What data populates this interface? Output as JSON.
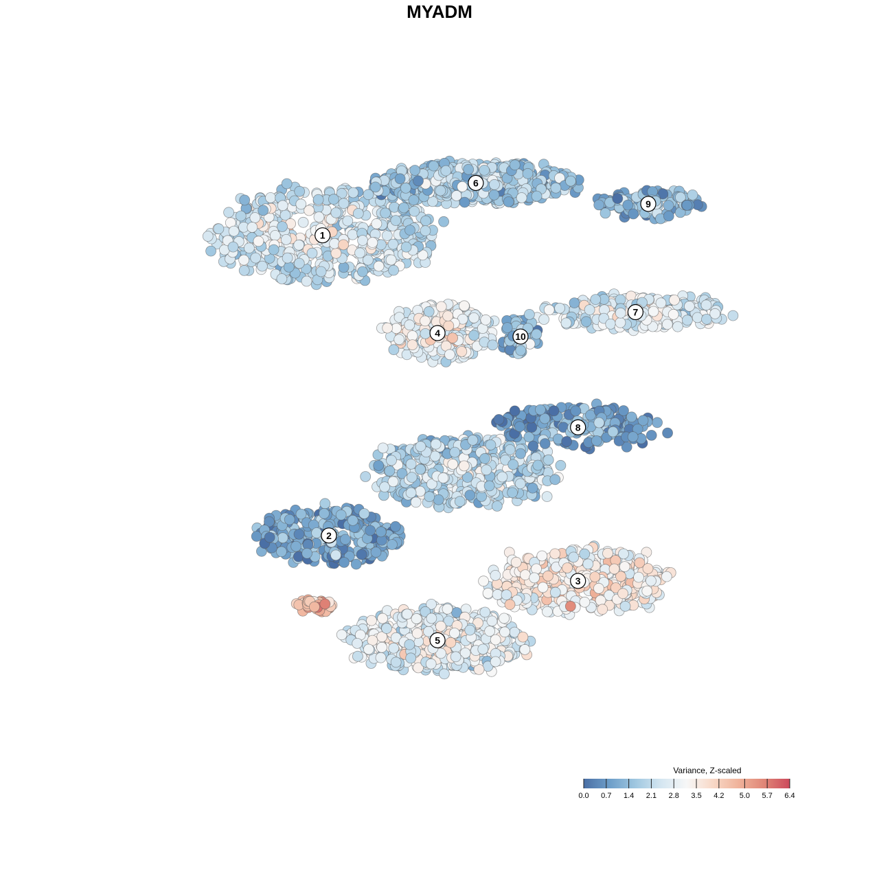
{
  "chart_data": {
    "type": "scatter",
    "title": "MYADM",
    "xlabel": "",
    "ylabel": "",
    "grid": false,
    "legend": {
      "title": "Variance, Z-scaled",
      "placement": "bottom-right",
      "ticks": [
        "0.0",
        "0.7",
        "1.4",
        "2.1",
        "2.8",
        "3.5",
        "4.2",
        "5.0",
        "5.7",
        "6.4"
      ],
      "range": [
        0.0,
        6.4
      ],
      "colors": [
        "#4a6fa5",
        "#6d9ec9",
        "#9fc7e0",
        "#d4e6f1",
        "#f7f7f7",
        "#f8d9c8",
        "#f0b39b",
        "#e08677",
        "#cc4a5c"
      ]
    },
    "clusters": [
      {
        "label": "1",
        "cx": 0.29,
        "cy": 0.73,
        "rx": 0.17,
        "ry": 0.13,
        "mean": 2.4,
        "hot": 4.1,
        "n": 520
      },
      {
        "label": "2",
        "cx": 0.3,
        "cy": -0.13,
        "rx": 0.11,
        "ry": 0.08,
        "mean": 1.1,
        "hot": 2.0,
        "n": 300
      },
      {
        "label": "3",
        "cx": 0.69,
        "cy": -0.26,
        "rx": 0.14,
        "ry": 0.09,
        "mean": 3.4,
        "hot": 4.8,
        "n": 420
      },
      {
        "label": "4",
        "cx": 0.47,
        "cy": 0.45,
        "rx": 0.08,
        "ry": 0.08,
        "mean": 3.1,
        "hot": 4.2,
        "n": 260
      },
      {
        "label": "5",
        "cx": 0.47,
        "cy": -0.43,
        "rx": 0.14,
        "ry": 0.09,
        "mean": 2.9,
        "hot": 3.8,
        "n": 480
      },
      {
        "label": "6",
        "cx": 0.53,
        "cy": 0.88,
        "rx": 0.16,
        "ry": 0.06,
        "mean": 1.9,
        "hot": 2.7,
        "n": 480
      },
      {
        "label": "7",
        "cx": 0.78,
        "cy": 0.51,
        "rx": 0.15,
        "ry": 0.05,
        "mean": 2.6,
        "hot": 3.6,
        "n": 240
      },
      {
        "label": "8",
        "cx": 0.69,
        "cy": 0.18,
        "rx": 0.12,
        "ry": 0.06,
        "mean": 1.0,
        "hot": 1.9,
        "n": 220
      },
      {
        "label": "9",
        "cx": 0.8,
        "cy": 0.82,
        "rx": 0.08,
        "ry": 0.04,
        "mean": 1.4,
        "hot": 2.1,
        "n": 110
      },
      {
        "label": "10",
        "cx": 0.6,
        "cy": 0.44,
        "rx": 0.03,
        "ry": 0.05,
        "mean": 1.7,
        "hot": 2.3,
        "n": 60
      },
      {
        "label": "",
        "cx": 0.51,
        "cy": 0.05,
        "rx": 0.14,
        "ry": 0.1,
        "mean": 2.2,
        "hot": 3.4,
        "n": 420
      },
      {
        "label": "",
        "cx": 0.28,
        "cy": -0.33,
        "rx": 0.03,
        "ry": 0.02,
        "mean": 4.8,
        "hot": 6.2,
        "n": 40
      }
    ],
    "xlim": [
      0,
      1
    ],
    "ylim": [
      -0.75,
      1.05
    ]
  }
}
